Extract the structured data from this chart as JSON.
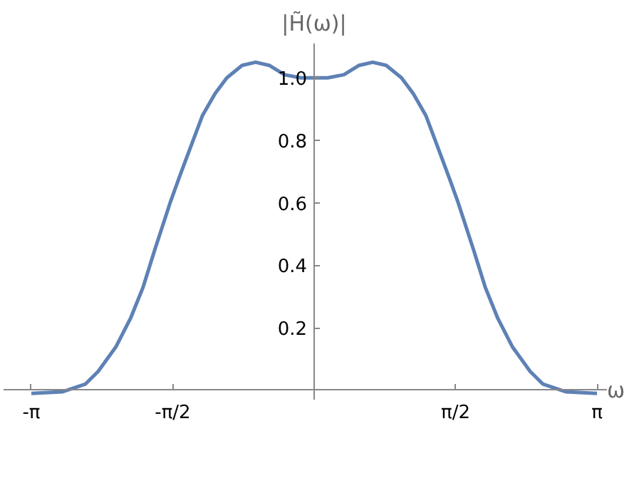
{
  "chart_data": {
    "type": "line",
    "xlabel": "ω",
    "ylabel": "|H̃(ω)|",
    "x": [
      -3.1416,
      -2.8,
      -2.54,
      -2.4,
      -2.2,
      -2.04,
      -1.9,
      -1.77,
      -1.6,
      -1.5,
      -1.37,
      -1.24,
      -1.1,
      -0.97,
      -0.8,
      -0.65,
      -0.5,
      -0.33,
      -0.15,
      0,
      0.15,
      0.33,
      0.5,
      0.65,
      0.8,
      0.97,
      1.1,
      1.24,
      1.37,
      1.5,
      1.6,
      1.77,
      1.9,
      2.04,
      2.2,
      2.4,
      2.54,
      2.8,
      3.1416
    ],
    "series": [
      {
        "color": "#5e81b5",
        "values": [
          -0.01,
          -0.005,
          0.02,
          0.06,
          0.14,
          0.23,
          0.33,
          0.45,
          0.6,
          0.68,
          0.78,
          0.88,
          0.95,
          1.0,
          1.04,
          1.05,
          1.04,
          1.01,
          1.0,
          1.0,
          1.0,
          1.01,
          1.04,
          1.05,
          1.04,
          1.0,
          0.95,
          0.88,
          0.78,
          0.68,
          0.6,
          0.45,
          0.33,
          0.23,
          0.14,
          0.06,
          0.02,
          -0.005,
          -0.01
        ]
      }
    ],
    "xlim": [
      -3.45,
      3.45
    ],
    "ylim": [
      -0.03,
      1.11
    ],
    "xticks": [
      {
        "value": -3.1416,
        "label": "-π"
      },
      {
        "value": -1.5708,
        "label": "-π/2"
      },
      {
        "value": 1.5708,
        "label": "π/2"
      },
      {
        "value": 3.1416,
        "label": "π"
      }
    ],
    "yticks": [
      0.2,
      0.4,
      0.6,
      0.8,
      {
        "value": 1.0,
        "label": "1.0"
      }
    ],
    "grid": false,
    "marker": "none",
    "line_style": "solid"
  }
}
